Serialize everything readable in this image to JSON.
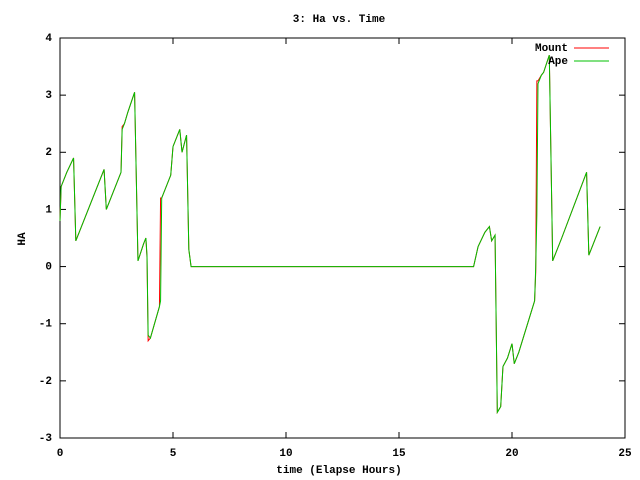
{
  "chart_data": {
    "type": "line",
    "title": "3: Ha vs. Time",
    "x_label": "time (Elapse Hours)",
    "y_label": "HA",
    "x": [
      0,
      0.05,
      0.3,
      0.6,
      0.7,
      1.3,
      1.95,
      2.05,
      2.7,
      2.75,
      2.85,
      3.0,
      3.3,
      3.45,
      3.7,
      3.8,
      3.85,
      3.9,
      4.0,
      4.4,
      4.45,
      4.5,
      4.9,
      5.0,
      5.3,
      5.4,
      5.6,
      5.7,
      5.8,
      18.3,
      18.5,
      18.8,
      19.0,
      19.1,
      19.25,
      19.35,
      19.5,
      19.6,
      19.8,
      20.0,
      20.1,
      20.3,
      21.0,
      21.05,
      21.1,
      21.15,
      21.3,
      21.4,
      21.65,
      21.8,
      22.2,
      23.3,
      23.4,
      23.9
    ],
    "series": [
      {
        "name": "Mount",
        "color": "#ff0000",
        "values": [
          0.8,
          1.4,
          1.65,
          1.9,
          0.45,
          1.05,
          1.7,
          1.0,
          1.65,
          2.45,
          2.5,
          2.7,
          3.05,
          0.1,
          0.4,
          0.5,
          0.15,
          -1.3,
          -1.25,
          -0.7,
          1.2,
          1.2,
          1.6,
          2.1,
          2.4,
          2.0,
          2.3,
          0.3,
          0.0,
          0.0,
          0.35,
          0.6,
          0.7,
          0.45,
          0.55,
          -2.55,
          -2.45,
          -1.75,
          -1.6,
          -1.35,
          -1.7,
          -1.5,
          -0.6,
          -0.1,
          3.25,
          3.25,
          3.35,
          3.4,
          3.7,
          0.1,
          0.5,
          1.65,
          0.2,
          0.7
        ]
      },
      {
        "name": "Ape",
        "color": "#00c000",
        "values": [
          0.8,
          1.4,
          1.65,
          1.9,
          0.45,
          1.05,
          1.7,
          1.0,
          1.65,
          2.4,
          2.5,
          2.7,
          3.05,
          0.1,
          0.4,
          0.5,
          0.2,
          -1.2,
          -1.25,
          -0.7,
          -0.6,
          1.2,
          1.6,
          2.1,
          2.4,
          2.0,
          2.3,
          0.3,
          0.0,
          0.0,
          0.35,
          0.6,
          0.7,
          0.45,
          0.55,
          -2.55,
          -2.45,
          -1.75,
          -1.6,
          -1.35,
          -1.7,
          -1.5,
          -0.6,
          0.0,
          0.9,
          3.2,
          3.35,
          3.4,
          3.7,
          0.1,
          0.5,
          1.65,
          0.2,
          0.7
        ]
      }
    ],
    "xlim": [
      0,
      25
    ],
    "xticks": [
      0,
      5,
      10,
      15,
      20,
      25
    ],
    "ylim": [
      -3,
      4
    ],
    "yticks": [
      -3,
      -2,
      -1,
      0,
      1,
      2,
      3,
      4
    ],
    "grid": false,
    "legend": "top-right"
  }
}
